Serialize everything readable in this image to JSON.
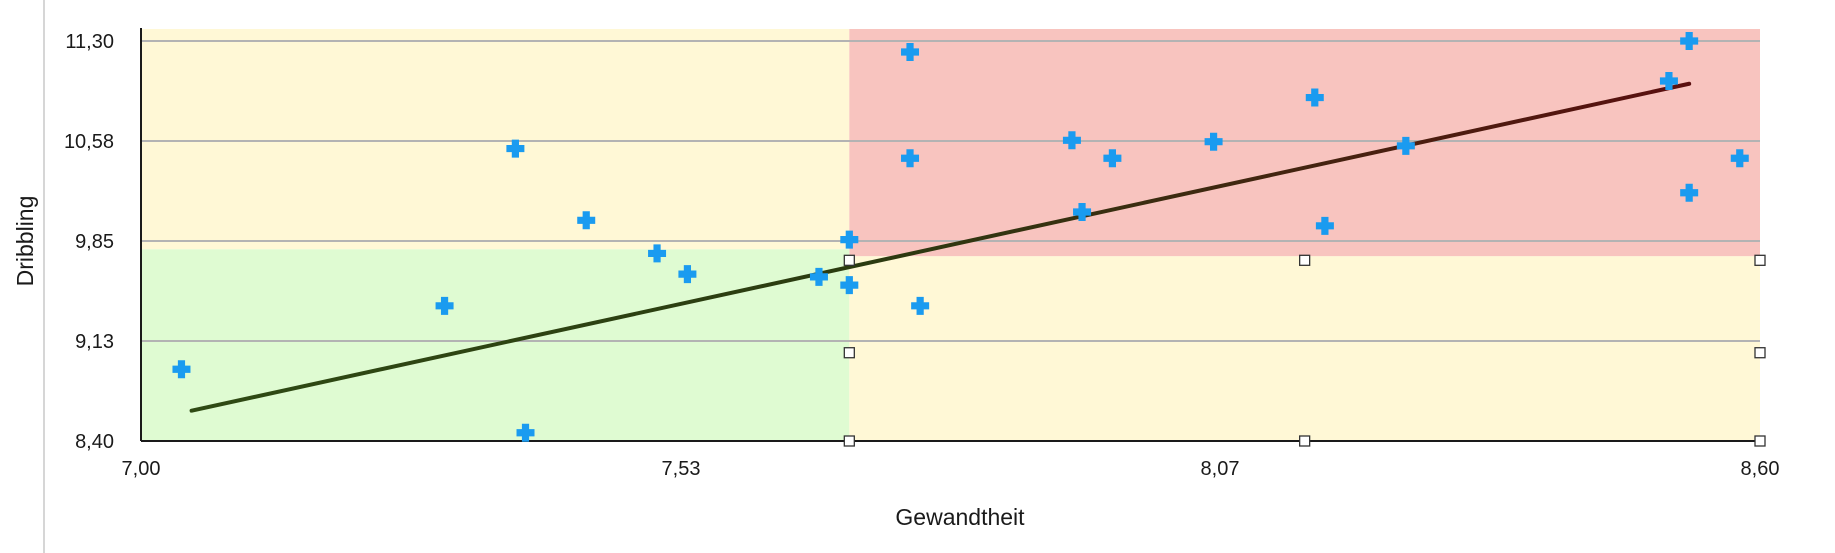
{
  "chart_data": {
    "type": "scatter",
    "title": "",
    "xlabel": "Gewandtheit",
    "ylabel": "Dribbling",
    "xlim": [
      7.0,
      8.6
    ],
    "ylim": [
      8.4,
      11.3
    ],
    "x_ticks": [
      "7,00",
      "7,53",
      "8,07",
      "8,60"
    ],
    "y_ticks": [
      "8,40",
      "9,13",
      "9,85",
      "10,58",
      "11,30"
    ],
    "grid": "horizontal",
    "marker": "plus",
    "colors": {
      "points": "#1a9bf0",
      "trendline": "#2b2b0f",
      "quadrant_low_low": "#dffbd2",
      "quadrant_high_high": "#f8c4bf",
      "quadrant_mixed": "#fff8d6",
      "gridline": "#b3b3b3"
    },
    "quadrant_split": {
      "x": 7.7,
      "y": 9.79
    },
    "points": [
      {
        "x": 7.04,
        "y": 8.92
      },
      {
        "x": 7.3,
        "y": 9.38
      },
      {
        "x": 7.37,
        "y": 10.52
      },
      {
        "x": 7.38,
        "y": 8.46
      },
      {
        "x": 7.44,
        "y": 10.0
      },
      {
        "x": 7.51,
        "y": 9.76
      },
      {
        "x": 7.54,
        "y": 9.61
      },
      {
        "x": 7.67,
        "y": 9.59
      },
      {
        "x": 7.7,
        "y": 9.53
      },
      {
        "x": 7.7,
        "y": 9.86
      },
      {
        "x": 7.76,
        "y": 11.22
      },
      {
        "x": 7.76,
        "y": 10.45
      },
      {
        "x": 7.77,
        "y": 9.38
      },
      {
        "x": 7.92,
        "y": 10.58
      },
      {
        "x": 7.93,
        "y": 10.06
      },
      {
        "x": 7.96,
        "y": 10.45
      },
      {
        "x": 8.06,
        "y": 10.57
      },
      {
        "x": 8.16,
        "y": 10.89
      },
      {
        "x": 8.17,
        "y": 9.96
      },
      {
        "x": 8.25,
        "y": 10.54
      },
      {
        "x": 8.51,
        "y": 11.01
      },
      {
        "x": 8.53,
        "y": 11.3
      },
      {
        "x": 8.53,
        "y": 10.2
      },
      {
        "x": 8.58,
        "y": 10.45
      }
    ],
    "trendline": [
      {
        "x": 7.05,
        "y": 8.62
      },
      {
        "x": 8.53,
        "y": 10.99
      }
    ],
    "handles": [
      {
        "x": 7.7,
        "y": 8.4
      },
      {
        "x": 7.7,
        "y": 9.04
      },
      {
        "x": 7.7,
        "y": 9.71
      },
      {
        "x": 8.15,
        "y": 9.71
      },
      {
        "x": 8.15,
        "y": 8.4
      },
      {
        "x": 8.6,
        "y": 9.71
      },
      {
        "x": 8.6,
        "y": 9.04
      },
      {
        "x": 8.6,
        "y": 8.4
      }
    ]
  }
}
